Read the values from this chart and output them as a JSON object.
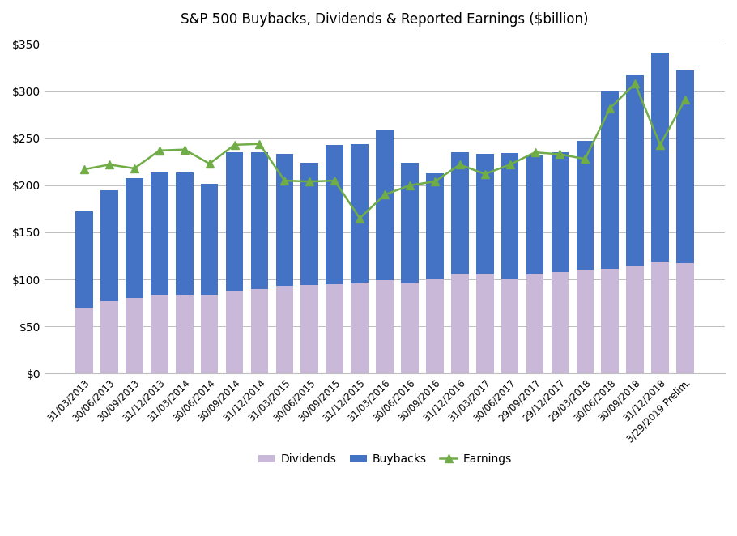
{
  "title": "S&P 500 Buybacks, Dividends & Reported Earnings ($billion)",
  "categories": [
    "31/03/2013",
    "30/06/2013",
    "30/09/2013",
    "31/12/2013",
    "31/03/2014",
    "30/06/2014",
    "30/09/2014",
    "31/12/2014",
    "31/03/2015",
    "30/06/2015",
    "30/09/2015",
    "31/12/2015",
    "31/03/2016",
    "30/06/2016",
    "30/09/2016",
    "31/12/2016",
    "31/03/2017",
    "30/06/2017",
    "29/09/2017",
    "29/12/2017",
    "29/03/2018",
    "30/06/2018",
    "30/09/2018",
    "31/12/2018",
    "3/29/2019 Prelim."
  ],
  "dividends": [
    70,
    77,
    80,
    84,
    84,
    84,
    87,
    90,
    93,
    94,
    95,
    97,
    99,
    97,
    101,
    105,
    105,
    101,
    105,
    108,
    110,
    111,
    115,
    119,
    117
  ],
  "buybacks": [
    102,
    118,
    128,
    130,
    130,
    118,
    148,
    145,
    140,
    130,
    148,
    147,
    160,
    127,
    112,
    130,
    128,
    133,
    127,
    127,
    137,
    189,
    202,
    222,
    205
  ],
  "earnings": [
    217,
    222,
    218,
    237,
    238,
    223,
    243,
    244,
    205,
    204,
    205,
    165,
    190,
    200,
    204,
    222,
    212,
    222,
    235,
    233,
    228,
    282,
    308,
    243,
    291
  ],
  "dividends_color": "#c9b8d8",
  "buybacks_color": "#4472c4",
  "earnings_color": "#70ad47",
  "title_fontsize": 12,
  "ylim": [
    0,
    360
  ],
  "yticks": [
    0,
    50,
    100,
    150,
    200,
    250,
    300,
    350
  ],
  "background_color": "#ffffff",
  "grid_color": "#bfbfbf"
}
